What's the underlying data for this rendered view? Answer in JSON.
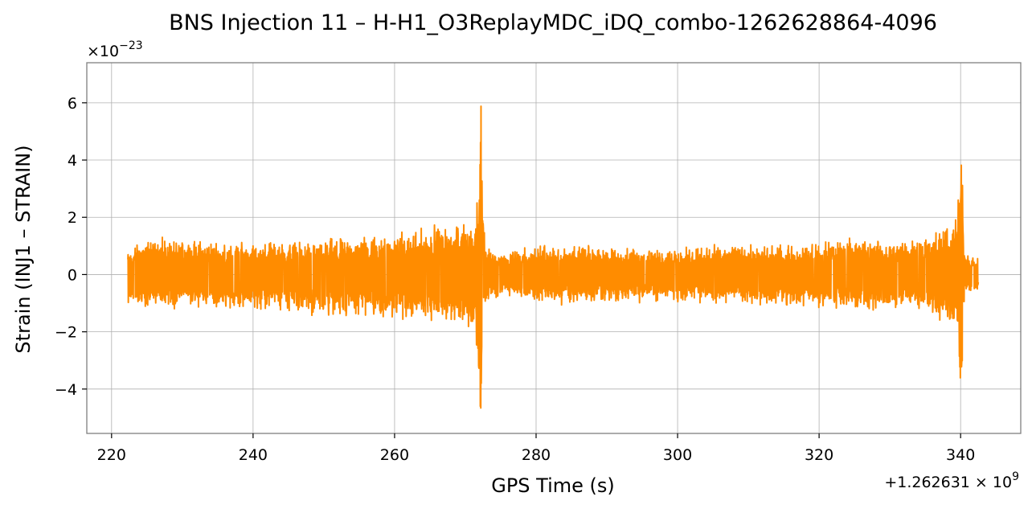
{
  "chart_data": {
    "type": "line",
    "title": "BNS Injection 11 – H-H1_O3ReplayMDC_iDQ_combo-1262628864-4096",
    "xlabel": "GPS Time (s)",
    "ylabel": "Strain (INJ1 – STRAIN)",
    "x_offset_text": "+1.262631",
    "x_offset_exp": "9",
    "y_scale_text": "×10",
    "y_scale_exp": "−23",
    "xlim": [
      216.5,
      348.5
    ],
    "ylim": [
      -5.55,
      7.4
    ],
    "grid": true,
    "legend": "none",
    "x_ticks": [
      220,
      240,
      260,
      280,
      300,
      320,
      340
    ],
    "x_tick_labels": [
      "220",
      "240",
      "260",
      "280",
      "300",
      "320",
      "340"
    ],
    "y_ticks": [
      -4,
      -2,
      0,
      2,
      4,
      6
    ],
    "y_tick_labels": [
      "−4",
      "−2",
      "0",
      "2",
      "4",
      "6"
    ],
    "series": [
      {
        "color": "#ff8c00",
        "x_range": [
          222.3,
          342.5
        ],
        "envelope_x": [
          222.3,
          225,
          230,
          235,
          240,
          245,
          250,
          255,
          260,
          265,
          268,
          270,
          271.5,
          272.2,
          272.4,
          273,
          276,
          280,
          285,
          290,
          300,
          310,
          320,
          325,
          330,
          335,
          338,
          339.5,
          340.2,
          340.4,
          341,
          342.5
        ],
        "envelope_upper": [
          1.0,
          1.4,
          1.3,
          1.2,
          1.2,
          1.2,
          1.3,
          1.4,
          1.5,
          1.8,
          1.8,
          2.0,
          2.2,
          6.8,
          2.3,
          1.0,
          0.8,
          1.1,
          1.1,
          1.0,
          1.0,
          1.1,
          1.2,
          1.4,
          1.3,
          1.5,
          1.8,
          2.2,
          4.95,
          1.0,
          0.8,
          0.6
        ],
        "envelope_lower": [
          -1.2,
          -1.3,
          -1.2,
          -1.3,
          -1.3,
          -1.4,
          -1.5,
          -1.6,
          -1.6,
          -1.8,
          -1.9,
          -2.0,
          -2.3,
          -5.0,
          -2.0,
          -0.9,
          -0.8,
          -1.0,
          -1.1,
          -1.0,
          -1.0,
          -1.1,
          -1.2,
          -1.3,
          -1.3,
          -1.4,
          -1.8,
          -2.2,
          -4.9,
          -1.0,
          -0.8,
          -0.6
        ]
      }
    ]
  }
}
